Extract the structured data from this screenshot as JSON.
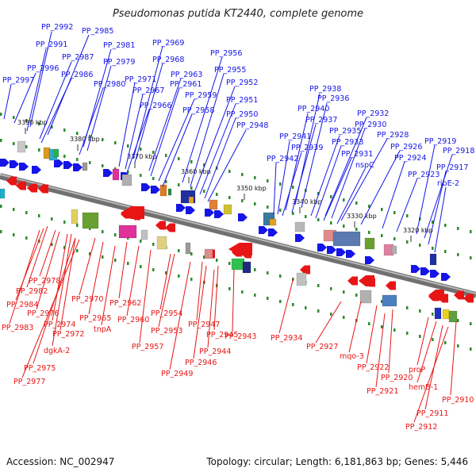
{
  "title": "Pseudomonas putida KT2440, complete genome",
  "footer": {
    "accession": "Accession: NC_002947",
    "summary": "Topology: circular; Length: 6,181,863 bp; Genes: 5,446"
  },
  "colors": {
    "forward_strand": "#1515e8",
    "reverse_strand": "#e81515",
    "backbone": "#8a8a8a",
    "tick": "#2e8b2e",
    "ruler_text": "#111111"
  },
  "ruler": [
    "3390 kbp",
    "3380 kbp",
    "3370 kbp",
    "3360 kbp",
    "3350 kbp",
    "3340 kbp",
    "3330 kbp",
    "3320 kbp"
  ],
  "forward_genes": [
    "PP_2992",
    "PP_2985",
    "PP_2991",
    "PP_2981",
    "PP_2969",
    "PP_2987",
    "PP_2979",
    "PP_2968",
    "PP_2956",
    "PP_2996",
    "PP_2986",
    "PP_2963",
    "PP_2955",
    "PP_2997",
    "PP_2980",
    "PP_2971",
    "PP_2961",
    "PP_2952",
    "PP_2967",
    "PP_2959",
    "PP_2951",
    "PP_2938",
    "PP_2966",
    "PP_2958",
    "PP_2950",
    "PP_2936",
    "PP_2940",
    "PP_2932",
    "PP_2948",
    "PP_2937",
    "PP_2930",
    "PP_2941",
    "PP_2935",
    "PP_2928",
    "PP_2939",
    "PP_2933",
    "PP_2926",
    "PP_2919",
    "PP_2942",
    "PP_2931",
    "PP_2918",
    "nspC",
    "PP_2924",
    "PP_2917",
    "PP_2923",
    "ribE-2"
  ],
  "reverse_genes": [
    "PP_2978",
    "PP_2982",
    "PP_2970",
    "PP_2962",
    "PP_2984",
    "PP_2976",
    "PP_2965",
    "PP_2960",
    "PP_2954",
    "PP_2974",
    "tnpA",
    "PP_2947",
    "PP_2983",
    "PP_2972",
    "PP_2953",
    "PP_2945",
    "PP_2943",
    "PP_2934",
    "PP_2957",
    "PP_2944",
    "PP_2927",
    "dgkA-2",
    "PP_2946",
    "mqo-3",
    "PP_2949",
    "PP_2975",
    "PP_2922",
    "PP_2920",
    "PP_2977",
    "proP",
    "PP_2921",
    "hemB-1",
    "PP_2910",
    "PP_2911",
    "PP_2912"
  ]
}
